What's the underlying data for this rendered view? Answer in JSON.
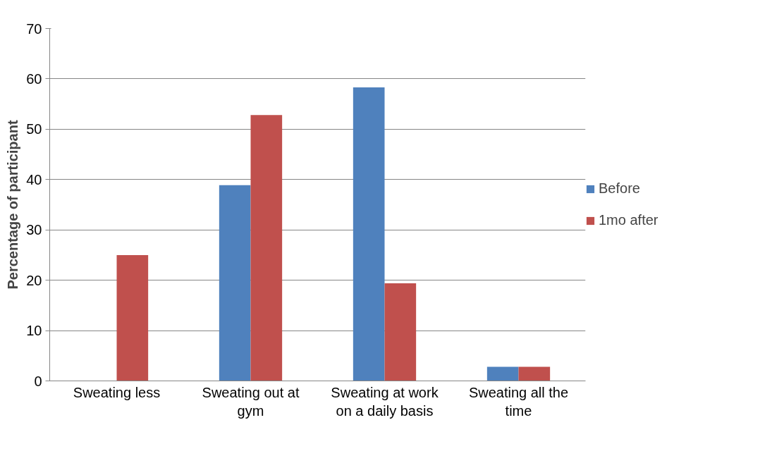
{
  "chart_data": {
    "type": "bar",
    "ylabel": "Percentage of participant",
    "categories": [
      "Sweating less",
      "Sweating out at gym",
      "Sweating at work on a daily basis",
      "Sweating all the time"
    ],
    "series": [
      {
        "name": "Before",
        "color": "#4f81bd",
        "values": [
          0,
          38.9,
          58.3,
          2.8
        ]
      },
      {
        "name": "1mo after",
        "color": "#c0504d",
        "values": [
          25,
          52.8,
          19.4,
          2.8
        ]
      }
    ],
    "ylim": [
      0,
      70
    ],
    "yticks": [
      0,
      10,
      20,
      30,
      40,
      50,
      60,
      70
    ],
    "grid": "y",
    "legend": "right"
  }
}
